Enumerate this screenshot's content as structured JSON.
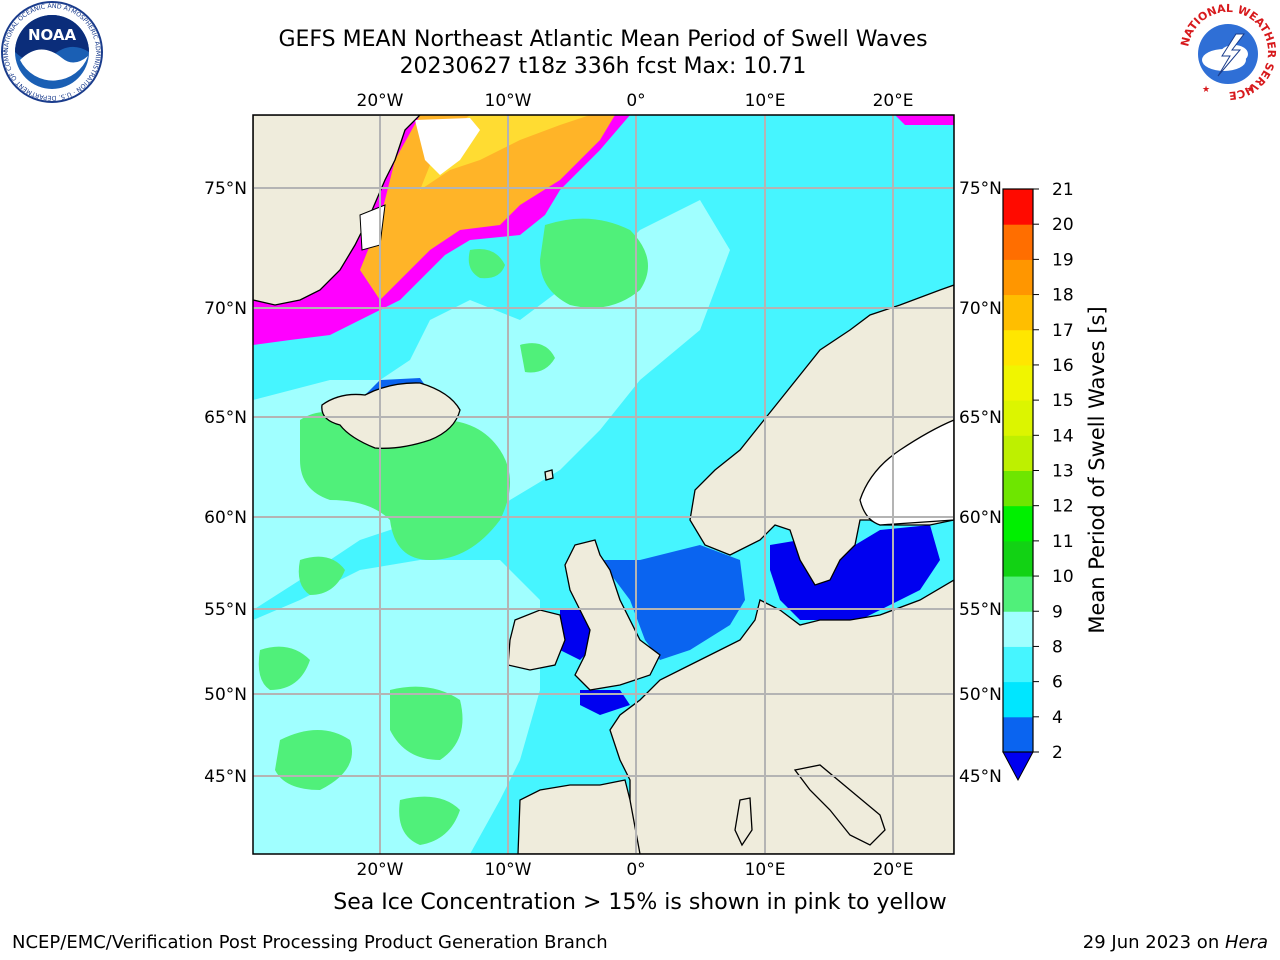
{
  "header": {
    "title_line1": "GEFS MEAN Northeast Atlantic Mean Period of Swell Waves",
    "title_line2": "20230627 t18z 336h fcst   Max: 10.71"
  },
  "logos": {
    "left": {
      "name": "noaa-logo",
      "text": "NOAA",
      "ring_text": "NATIONAL OCEANIC AND ATMOSPHERIC ADMINISTRATION · U.S. DEPARTMENT OF COMMERCE"
    },
    "right": {
      "name": "nws-logo",
      "ring_text": "NATIONAL WEATHER SERVICE"
    }
  },
  "map": {
    "lon_labels": [
      "20°W",
      "10°W",
      "0°",
      "10°E",
      "20°E"
    ],
    "lat_labels": [
      "75°N",
      "70°N",
      "65°N",
      "60°N",
      "55°N",
      "50°N",
      "45°N"
    ],
    "colors": {
      "land": "#efecdc",
      "ice_white": "#ffffff",
      "grid": "#b4b4b4"
    }
  },
  "colorbar": {
    "label": "Mean Period of Swell Waves [s]",
    "ticks": [
      "2",
      "4",
      "6",
      "8",
      "9",
      "10",
      "11",
      "12",
      "13",
      "14",
      "15",
      "16",
      "17",
      "18",
      "19",
      "20",
      "21"
    ],
    "colors": [
      "#0a64f0",
      "#00e6ff",
      "#46f5ff",
      "#a0ffff",
      "#50f07a",
      "#12d214",
      "#00f000",
      "#6ee600",
      "#bef000",
      "#dcf500",
      "#f0f500",
      "#ffe600",
      "#ffbe00",
      "#ff9600",
      "#ff6e00",
      "#ff3c00",
      "#ff0a00"
    ],
    "extend_color": "#0000f0"
  },
  "notes": {
    "ice_note": "Sea Ice Concentration > 15% is shown in pink to yellow"
  },
  "footer": {
    "left": "NCEP/EMC/Verification Post Processing Product Generation Branch",
    "right_prefix": "29 Jun 2023 on ",
    "right_machine": "Hera"
  }
}
